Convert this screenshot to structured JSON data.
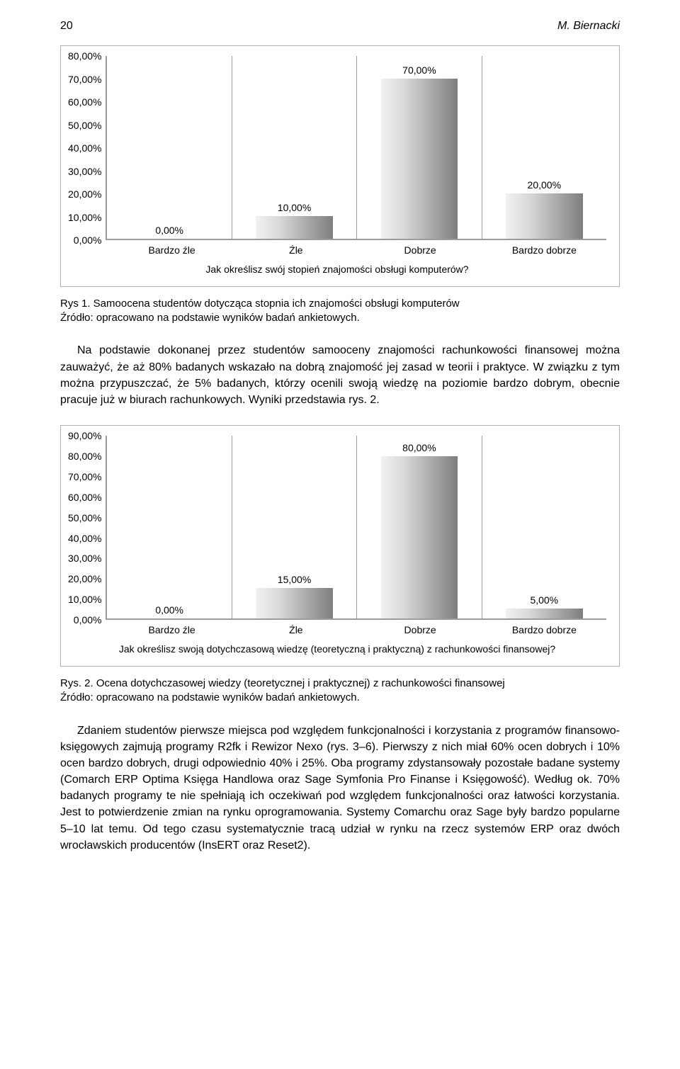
{
  "header": {
    "page_number": "20",
    "author": "M. Biernacki"
  },
  "chart1": {
    "type": "bar",
    "ylim": [
      0,
      80
    ],
    "ytick_step": 10,
    "yticks": [
      "80,00%",
      "70,00%",
      "60,00%",
      "50,00%",
      "40,00%",
      "30,00%",
      "20,00%",
      "10,00%",
      "0,00%"
    ],
    "categories": [
      "Bardzo źle",
      "Źle",
      "Dobrze",
      "Bardzo dobrze"
    ],
    "values": [
      0,
      10,
      70,
      20
    ],
    "value_labels": [
      "0,00%",
      "10,00%",
      "70,00%",
      "20,00%"
    ],
    "title": "Jak określisz swój stopień znajomości obsługi komputerów?",
    "border_color": "#b0b0b0",
    "axis_color": "#9c9c9c",
    "bar_gradient": [
      "#f2f2f2",
      "#7e7e7e"
    ],
    "background_color": "#ffffff",
    "label_fontsize": 14
  },
  "caption1": "Rys 1. Samoocena studentów dotycząca stopnia ich znajomości obsługi komputerów\nŹródło: opracowano na podstawie wyników badań ankietowych.",
  "para1": "Na podstawie dokonanej przez studentów samooceny znajomości rachunkowości finansowej można zauważyć, że aż 80% badanych wskazało na dobrą znajomość jej zasad w teorii i praktyce. W związku z tym można przypuszczać, że 5% badanych, którzy ocenili swoją wiedzę na poziomie bardzo dobrym, obecnie pracuje już w biurach rachunkowych. Wyniki przedstawia rys. 2.",
  "chart2": {
    "type": "bar",
    "ylim": [
      0,
      90
    ],
    "ytick_step": 10,
    "yticks": [
      "90,00%",
      "80,00%",
      "70,00%",
      "60,00%",
      "50,00%",
      "40,00%",
      "30,00%",
      "20,00%",
      "10,00%",
      "0,00%"
    ],
    "categories": [
      "Bardzo źle",
      "Źle",
      "Dobrze",
      "Bardzo dobrze"
    ],
    "values": [
      0,
      15,
      80,
      5
    ],
    "value_labels": [
      "0,00%",
      "15,00%",
      "80,00%",
      "5,00%"
    ],
    "title": "Jak określisz swoją dotychczasową wiedzę (teoretyczną i praktyczną) z rachunkowości finansowej?",
    "border_color": "#b0b0b0",
    "axis_color": "#9c9c9c",
    "bar_gradient": [
      "#f2f2f2",
      "#7e7e7e"
    ],
    "background_color": "#ffffff",
    "label_fontsize": 14
  },
  "caption2": "Rys. 2. Ocena dotychczasowej wiedzy (teoretycznej i praktycznej) z rachunkowości finansowej\nŹródło: opracowano na podstawie wyników badań ankietowych.",
  "para2": "Zdaniem studentów pierwsze miejsca pod względem funkcjonalności i korzystania z programów finansowo-księgowych zajmują programy R2fk i Rewizor Nexo (rys. 3–6). Pierwszy z nich miał 60% ocen dobrych i 10% ocen bardzo dobrych, drugi odpowiednio 40% i 25%. Oba programy zdystansowały pozostałe badane systemy (Comarch ERP Optima Księga Handlowa oraz Sage Symfonia Pro Finanse i Księgowość). Według ok. 70% badanych programy te nie spełniają ich oczekiwań pod względem funkcjonalności oraz łatwości korzystania. Jest to potwierdzenie zmian na rynku oprogramowania. Systemy Comarchu oraz Sage były bardzo popularne 5–10 lat temu. Od tego czasu systematycznie tracą udział w rynku na rzecz systemów ERP oraz dwóch wrocławskich producentów (InsERT oraz Reset2)."
}
